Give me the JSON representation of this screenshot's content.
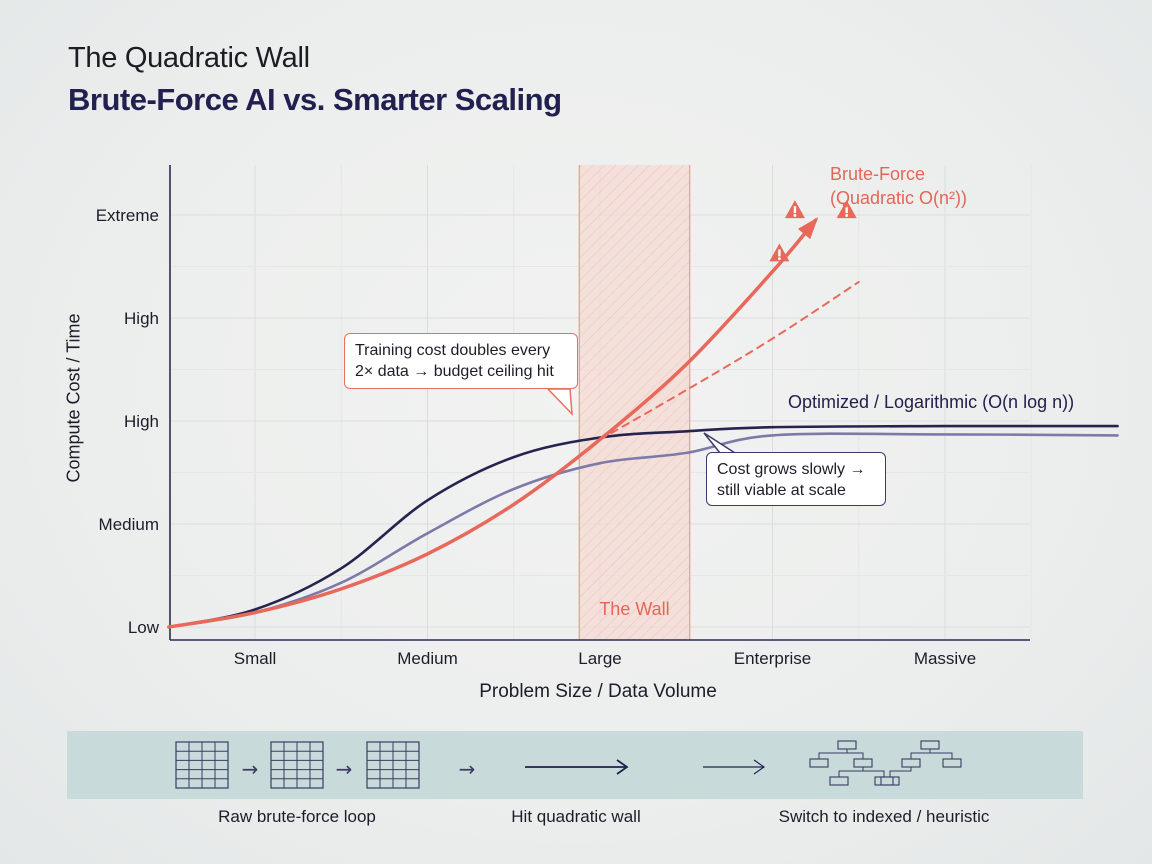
{
  "header": {
    "title": "The Quadratic Wall",
    "subtitle": "Brute-Force AI vs. Smarter Scaling"
  },
  "chart_data": {
    "type": "line",
    "title": "The Quadratic Wall",
    "subtitle": "Brute-Force AI vs. Smarter Scaling",
    "xlabel": "Problem Size / Data Volume",
    "ylabel": "Compute Cost / Time",
    "x_categories": [
      "Small",
      "Medium",
      "Large",
      "Enterprise",
      "Massive"
    ],
    "y_ticks": [
      "Low",
      "Medium",
      "High",
      "High",
      "Extreme"
    ],
    "y_range": [
      0,
      4
    ],
    "grid": true,
    "series": [
      {
        "name": "Brute-Force (Quadratic O(n²))",
        "color": "#e8685a",
        "style": "solid-arrow",
        "points": [
          [
            -0.5,
            0.0
          ],
          [
            0,
            0.14
          ],
          [
            0.5,
            0.37
          ],
          [
            1,
            0.71
          ],
          [
            1.5,
            1.19
          ],
          [
            2,
            1.82
          ],
          [
            2.5,
            2.55
          ],
          [
            3,
            3.45
          ],
          [
            3.25,
            3.95
          ]
        ]
      },
      {
        "name": "Brute-Force projection",
        "color": "#e8685a",
        "style": "dashed",
        "points": [
          [
            2,
            1.82
          ],
          [
            2.5,
            2.3
          ],
          [
            3,
            2.8
          ],
          [
            3.5,
            3.35
          ]
        ]
      },
      {
        "name": "Optimized / Logarithmic (O(n log n))",
        "color": "#26234f",
        "style": "solid",
        "points": [
          [
            -0.5,
            0.0
          ],
          [
            0,
            0.17
          ],
          [
            0.5,
            0.57
          ],
          [
            1,
            1.23
          ],
          [
            1.5,
            1.65
          ],
          [
            2,
            1.84
          ],
          [
            2.5,
            1.9
          ],
          [
            3,
            1.94
          ],
          [
            4,
            1.95
          ],
          [
            5,
            1.95
          ]
        ]
      },
      {
        "name": "",
        "color": "#7d7aa8",
        "style": "solid",
        "points": [
          [
            -0.5,
            0.0
          ],
          [
            0,
            0.14
          ],
          [
            0.5,
            0.43
          ],
          [
            1,
            0.91
          ],
          [
            1.5,
            1.34
          ],
          [
            2,
            1.59
          ],
          [
            2.5,
            1.69
          ],
          [
            3,
            1.86
          ],
          [
            4,
            1.87
          ],
          [
            5,
            1.86
          ]
        ]
      }
    ],
    "highlight_band": {
      "label": "The Wall",
      "x_range": [
        1.88,
        2.52
      ],
      "color": "#e8685a"
    },
    "warning_icons": 3,
    "annotations": [
      {
        "lines": [
          "Training cost doubles every",
          "2× data → budget ceiling hit"
        ]
      },
      {
        "lines": [
          "Cost grows slowly →",
          "still viable at scale"
        ]
      }
    ],
    "series_labels": {
      "brute_force": [
        "Brute-Force",
        "(Quadratic O(n²))"
      ],
      "optimized": "Optimized / Logarithmic (O(n log n))"
    }
  },
  "process_strip": {
    "steps": [
      {
        "label": "Raw brute-force loop"
      },
      {
        "label": "Hit quadratic wall"
      },
      {
        "label": "Switch to indexed / heuristic"
      }
    ],
    "arrow_glyph": "→"
  }
}
